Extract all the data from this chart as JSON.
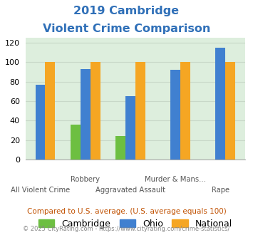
{
  "title_line1": "2019 Cambridge",
  "title_line2": "Violent Crime Comparison",
  "title_color": "#3070b8",
  "categories": [
    "All Violent Crime",
    "Robbery",
    "Aggravated Assault",
    "Murder & Mans...",
    "Rape"
  ],
  "cat_labels_row1": [
    "",
    "Robbery",
    "",
    "Murder & Mans...",
    ""
  ],
  "cat_labels_row2": [
    "All Violent Crime",
    "",
    "Aggravated Assault",
    "",
    "Rape"
  ],
  "cambridge": [
    null,
    36,
    24,
    null,
    null
  ],
  "ohio": [
    77,
    93,
    65,
    92,
    115
  ],
  "national": [
    100,
    100,
    100,
    100,
    100
  ],
  "cambridge_color": "#6dbf41",
  "ohio_color": "#4080d0",
  "national_color": "#f5a623",
  "ylim": [
    0,
    125
  ],
  "yticks": [
    0,
    20,
    40,
    60,
    80,
    100,
    120
  ],
  "bar_width": 0.22,
  "grid_color": "#c8d8c8",
  "bg_color": "#ddeedd",
  "legend_labels": [
    "Cambridge",
    "Ohio",
    "National"
  ],
  "footnote1": "Compared to U.S. average. (U.S. average equals 100)",
  "footnote2": "© 2025 CityRating.com - https://www.cityrating.com/crime-statistics/",
  "footnote1_color": "#c05000",
  "footnote2_color": "#888888"
}
